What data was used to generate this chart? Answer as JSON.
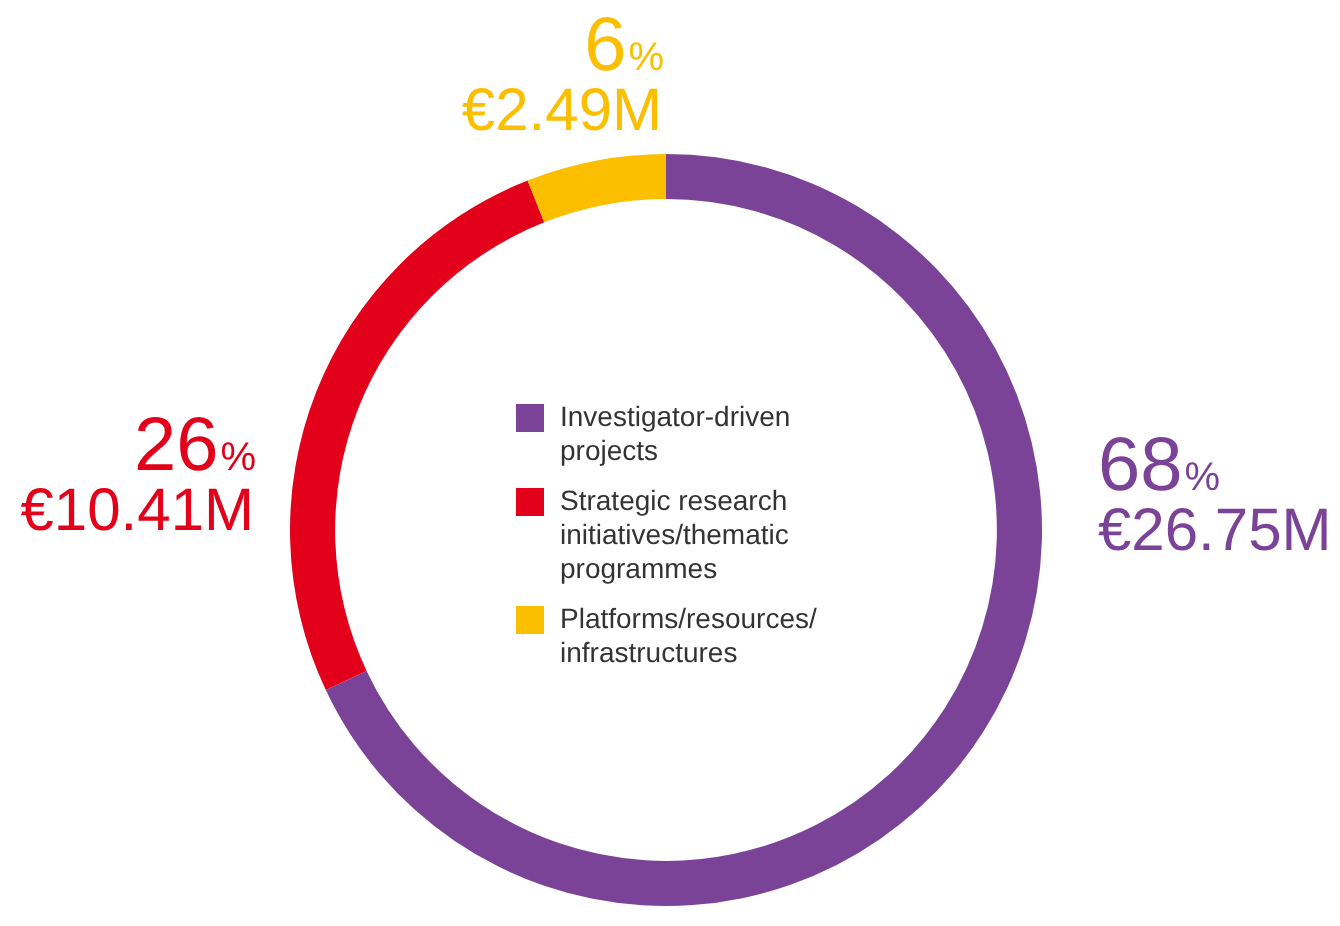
{
  "chart_data": {
    "type": "donut",
    "categories": [
      "Investigator-driven projects",
      "Strategic research initiatives/thematic programmes",
      "Platforms/resources/ infrastructures"
    ],
    "values": [
      68,
      26,
      6
    ],
    "colors": [
      "#7b4397",
      "#e2001a",
      "#fbbf00"
    ],
    "value_labels": [
      "68%\n€26.75M",
      "26%\n€10.41M",
      "6%\n€2.49M"
    ],
    "legend": "center"
  }
}
